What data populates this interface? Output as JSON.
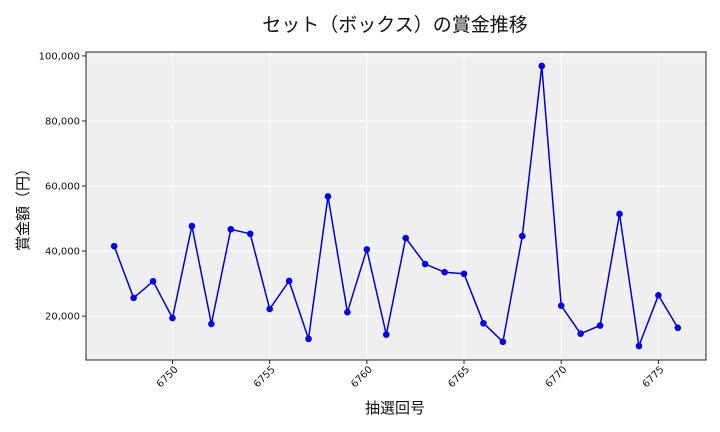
{
  "chart_data": {
    "type": "line",
    "title": "セット（ボックス）の賞金推移",
    "xlabel": "抽選回号",
    "ylabel": "賞金額（円）",
    "x": [
      6747,
      6748,
      6749,
      6750,
      6751,
      6752,
      6753,
      6754,
      6755,
      6756,
      6757,
      6758,
      6759,
      6760,
      6761,
      6762,
      6763,
      6764,
      6765,
      6766,
      6767,
      6768,
      6769,
      6770,
      6771,
      6772,
      6773,
      6774,
      6775,
      6776
    ],
    "series": [
      {
        "values": [
          41500,
          25600,
          30700,
          19400,
          47700,
          17600,
          46700,
          45300,
          22200,
          30800,
          13000,
          56800,
          21200,
          40500,
          14300,
          44000,
          36000,
          33500,
          33000,
          17800,
          12100,
          44600,
          96900,
          23200,
          14600,
          17100,
          51400,
          10800,
          26400,
          16400
        ]
      }
    ],
    "xticks": [
      6750,
      6755,
      6760,
      6765,
      6770,
      6775
    ],
    "yticks": [
      20000,
      40000,
      60000,
      80000,
      100000
    ],
    "xlim": [
      6745.55,
      6777.45
    ],
    "ylim": [
      6500,
      101200
    ],
    "grid": true,
    "colors": {
      "line": "#0000dd",
      "marker": "#0000ee",
      "plot_background": "#efefef",
      "grid": "#ffffff"
    }
  }
}
